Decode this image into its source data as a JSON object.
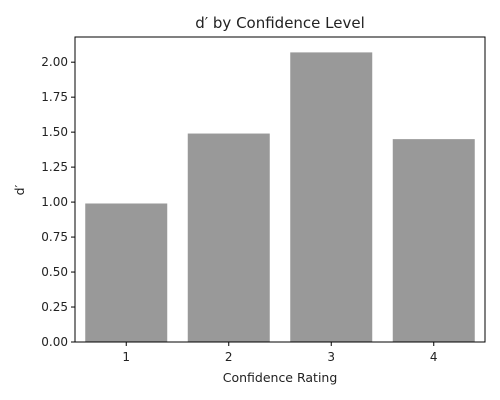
{
  "chart_data": {
    "type": "bar",
    "title": "d′ by Confidence Level",
    "xlabel": "Confidence Rating",
    "ylabel": "d′",
    "categories": [
      "1",
      "2",
      "3",
      "4"
    ],
    "values": [
      0.99,
      1.49,
      2.07,
      1.45
    ],
    "ylim": [
      0,
      2.18
    ],
    "yticks": [
      0.0,
      0.25,
      0.5,
      0.75,
      1.0,
      1.25,
      1.5,
      1.75,
      2.0
    ],
    "ytick_labels": [
      "0.00",
      "0.25",
      "0.50",
      "0.75",
      "1.00",
      "1.25",
      "1.50",
      "1.75",
      "2.00"
    ],
    "bar_color": "#999999",
    "grid": false,
    "legend": "none"
  }
}
